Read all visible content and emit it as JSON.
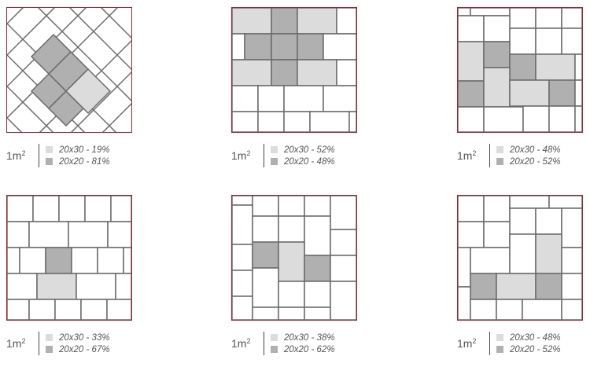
{
  "colors": {
    "border": "#a3212b",
    "light": "#dcdcdc",
    "dark": "#b0b0b0",
    "line": "#6a6a6a"
  },
  "patterns": [
    {
      "id": "pattern-1",
      "area_value": "1m",
      "area_exp": "2",
      "legend": [
        {
          "text": "20x30 - 19%",
          "tone": "light"
        },
        {
          "text": "20x20 - 81%",
          "tone": "dark"
        }
      ]
    },
    {
      "id": "pattern-2",
      "area_value": "1m",
      "area_exp": "2",
      "legend": [
        {
          "text": "20x30 - 52%",
          "tone": "light"
        },
        {
          "text": "20x20 - 48%",
          "tone": "dark"
        }
      ]
    },
    {
      "id": "pattern-3",
      "area_value": "1m",
      "area_exp": "2",
      "legend": [
        {
          "text": "20x30 - 48%",
          "tone": "light"
        },
        {
          "text": "20x20 - 52%",
          "tone": "dark"
        }
      ]
    },
    {
      "id": "pattern-4",
      "area_value": "1m",
      "area_exp": "2",
      "legend": [
        {
          "text": "20x30 - 33%",
          "tone": "light"
        },
        {
          "text": "20x20 - 67%",
          "tone": "dark"
        }
      ]
    },
    {
      "id": "pattern-5",
      "area_value": "1m",
      "area_exp": "2",
      "legend": [
        {
          "text": "20x30 - 38%",
          "tone": "light"
        },
        {
          "text": "20x20 - 62%",
          "tone": "dark"
        }
      ]
    },
    {
      "id": "pattern-6",
      "area_value": "1m",
      "area_exp": "2",
      "legend": [
        {
          "text": "20x30 - 48%",
          "tone": "light"
        },
        {
          "text": "20x20 - 52%",
          "tone": "dark"
        }
      ]
    }
  ]
}
